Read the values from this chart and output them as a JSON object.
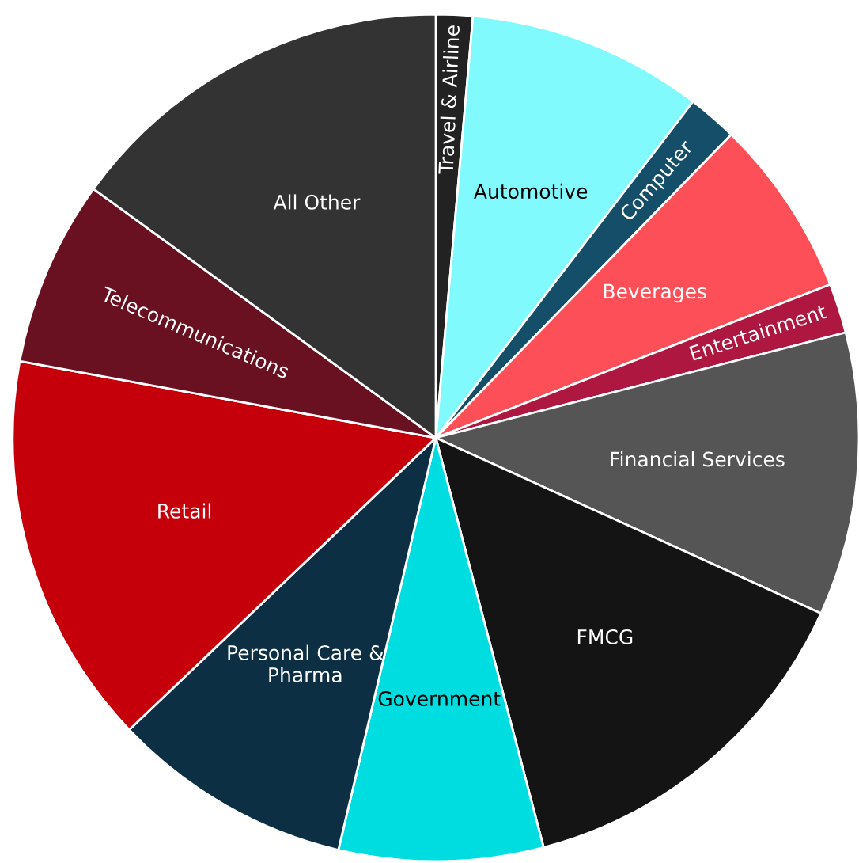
{
  "chart_data": {
    "type": "pie",
    "categories": [
      "Travel & Airline",
      "Automotive",
      "Computer",
      "Beverages",
      "Entertainment",
      "Financial Services",
      "FMCG",
      "Government",
      "Personal Care &\nPharma",
      "Retail",
      "Telecommunications",
      "All Other"
    ],
    "values": [
      1.4,
      9.0,
      1.9,
      6.8,
      1.9,
      10.8,
      14.1,
      7.8,
      9.2,
      15.0,
      7.1,
      15.0
    ],
    "colors": [
      "#222222",
      "#80fafc",
      "#144e68",
      "#fd4f57",
      "#ae1840",
      "#555555",
      "#141414",
      "#00dde0",
      "#0c2f44",
      "#c5000b",
      "#6a1121",
      "#333333"
    ],
    "legend": false
  }
}
